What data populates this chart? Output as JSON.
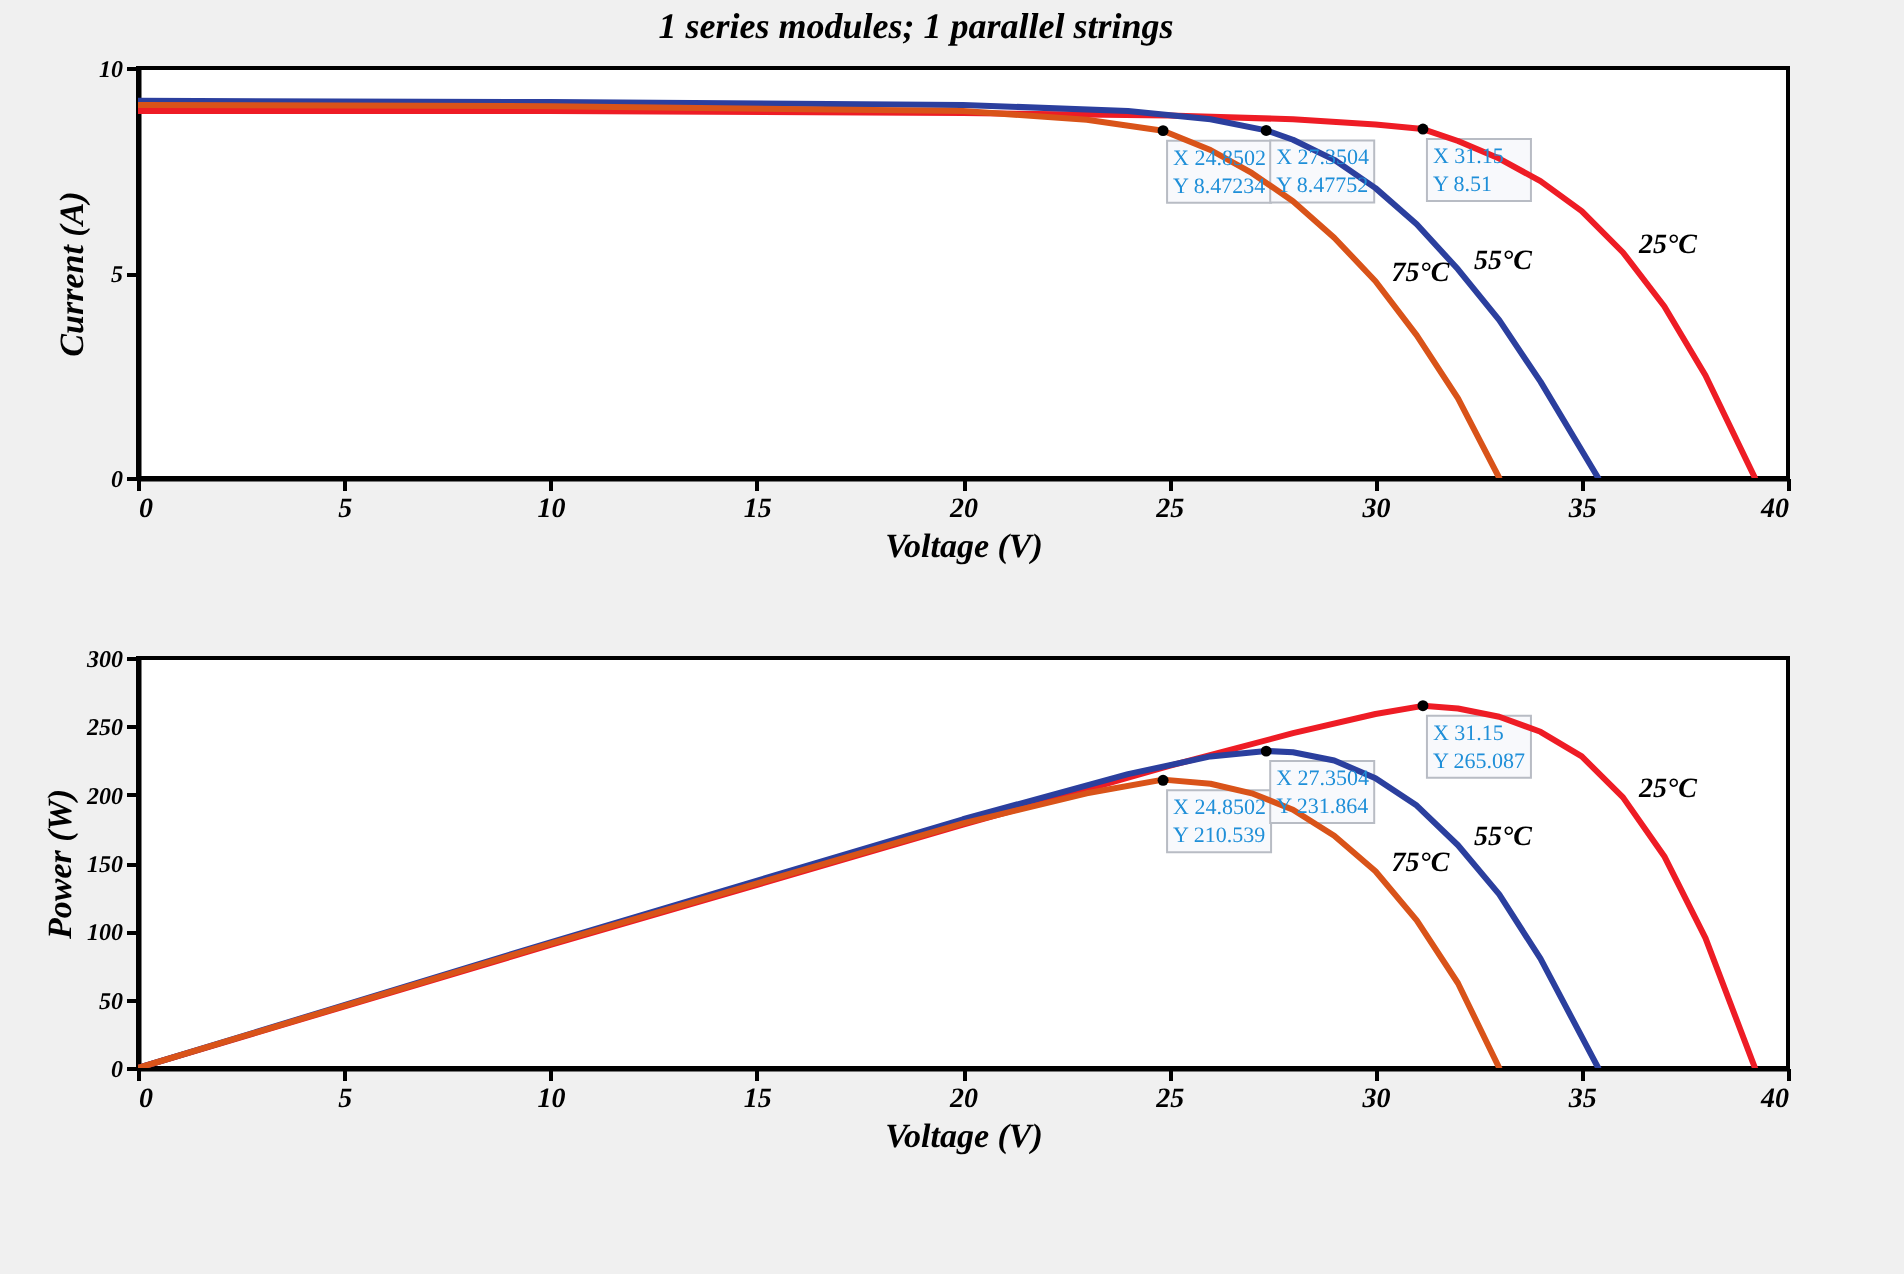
{
  "chart_data": [
    {
      "type": "line",
      "title": "1 series modules; 1 parallel strings",
      "xlabel": "Voltage (V)",
      "ylabel": "Current (A)",
      "xlim": [
        0,
        40
      ],
      "xticks": [
        0,
        5,
        10,
        15,
        20,
        25,
        30,
        35,
        40
      ],
      "ylim": [
        0,
        10
      ],
      "yticks": [
        0,
        5,
        10
      ],
      "series": [
        {
          "name": "25°C",
          "color": "#ee1c25",
          "x": [
            0,
            10,
            20,
            25,
            28,
            30,
            31.15,
            32,
            33,
            34,
            35,
            36,
            37,
            38,
            39.2
          ],
          "values": [
            8.95,
            8.95,
            8.9,
            8.84,
            8.75,
            8.62,
            8.51,
            8.22,
            7.79,
            7.24,
            6.51,
            5.5,
            4.19,
            2.5,
            0
          ]
        },
        {
          "name": "55°C",
          "color": "#2b3f9e",
          "x": [
            0,
            10,
            20,
            24,
            26,
            27.35,
            28,
            29,
            30,
            31,
            32,
            33,
            34,
            35.4
          ],
          "values": [
            9.2,
            9.17,
            9.1,
            8.95,
            8.75,
            8.48,
            8.25,
            7.76,
            7.07,
            6.19,
            5.09,
            3.85,
            2.35,
            0
          ]
        },
        {
          "name": "75°C",
          "color": "#d95319",
          "x": [
            0,
            10,
            20,
            23,
            24.85,
            26,
            27,
            28,
            29,
            30,
            31,
            32,
            33
          ],
          "values": [
            9.1,
            9.07,
            8.95,
            8.74,
            8.47,
            8.0,
            7.44,
            6.75,
            5.86,
            4.8,
            3.48,
            1.94,
            0
          ]
        }
      ],
      "annotations": [
        {
          "text": "X 24.8502\nY 8.47234",
          "x": 24.8502,
          "y": 8.47234
        },
        {
          "text": "X 27.3504\nY 8.47752",
          "x": 27.3504,
          "y": 8.47752
        },
        {
          "text": "X 31.15\nY 8.51",
          "x": 31.15,
          "y": 8.51
        }
      ]
    },
    {
      "type": "line",
      "xlabel": "Voltage (V)",
      "ylabel": "Power (W)",
      "xlim": [
        0,
        40
      ],
      "xticks": [
        0,
        5,
        10,
        15,
        20,
        25,
        30,
        35,
        40
      ],
      "ylim": [
        0,
        300
      ],
      "yticks": [
        0,
        50,
        100,
        150,
        200,
        250,
        300
      ],
      "series": [
        {
          "name": "25°C",
          "color": "#ee1c25",
          "x": [
            0,
            10,
            20,
            25,
            28,
            30,
            31.15,
            32,
            33,
            34,
            35,
            36,
            37,
            38,
            39.2
          ],
          "values": [
            0,
            90,
            178,
            221,
            245,
            259,
            265,
            263,
            257,
            246,
            228,
            198,
            155,
            95,
            0
          ]
        },
        {
          "name": "55°C",
          "color": "#2b3f9e",
          "x": [
            0,
            10,
            20,
            24,
            26,
            27.35,
            28,
            29,
            30,
            31,
            32,
            33,
            34,
            35.4
          ],
          "values": [
            0,
            92,
            182,
            215,
            228,
            232,
            231,
            225,
            212,
            192,
            163,
            127,
            80,
            0
          ]
        },
        {
          "name": "75°C",
          "color": "#d95319",
          "x": [
            0,
            10,
            20,
            23,
            24.85,
            26,
            27,
            28,
            29,
            30,
            31,
            32,
            33
          ],
          "values": [
            0,
            91,
            179,
            201,
            211,
            208,
            201,
            189,
            170,
            144,
            108,
            62,
            0
          ]
        }
      ],
      "annotations": [
        {
          "text": "X 24.8502\nY 210.539",
          "x": 24.8502,
          "y": 210.539
        },
        {
          "text": "X 27.3504\nY 231.864",
          "x": 27.3504,
          "y": 231.864
        },
        {
          "text": "X 31.15\nY 265.087",
          "x": 31.15,
          "y": 265.087
        }
      ]
    }
  ]
}
